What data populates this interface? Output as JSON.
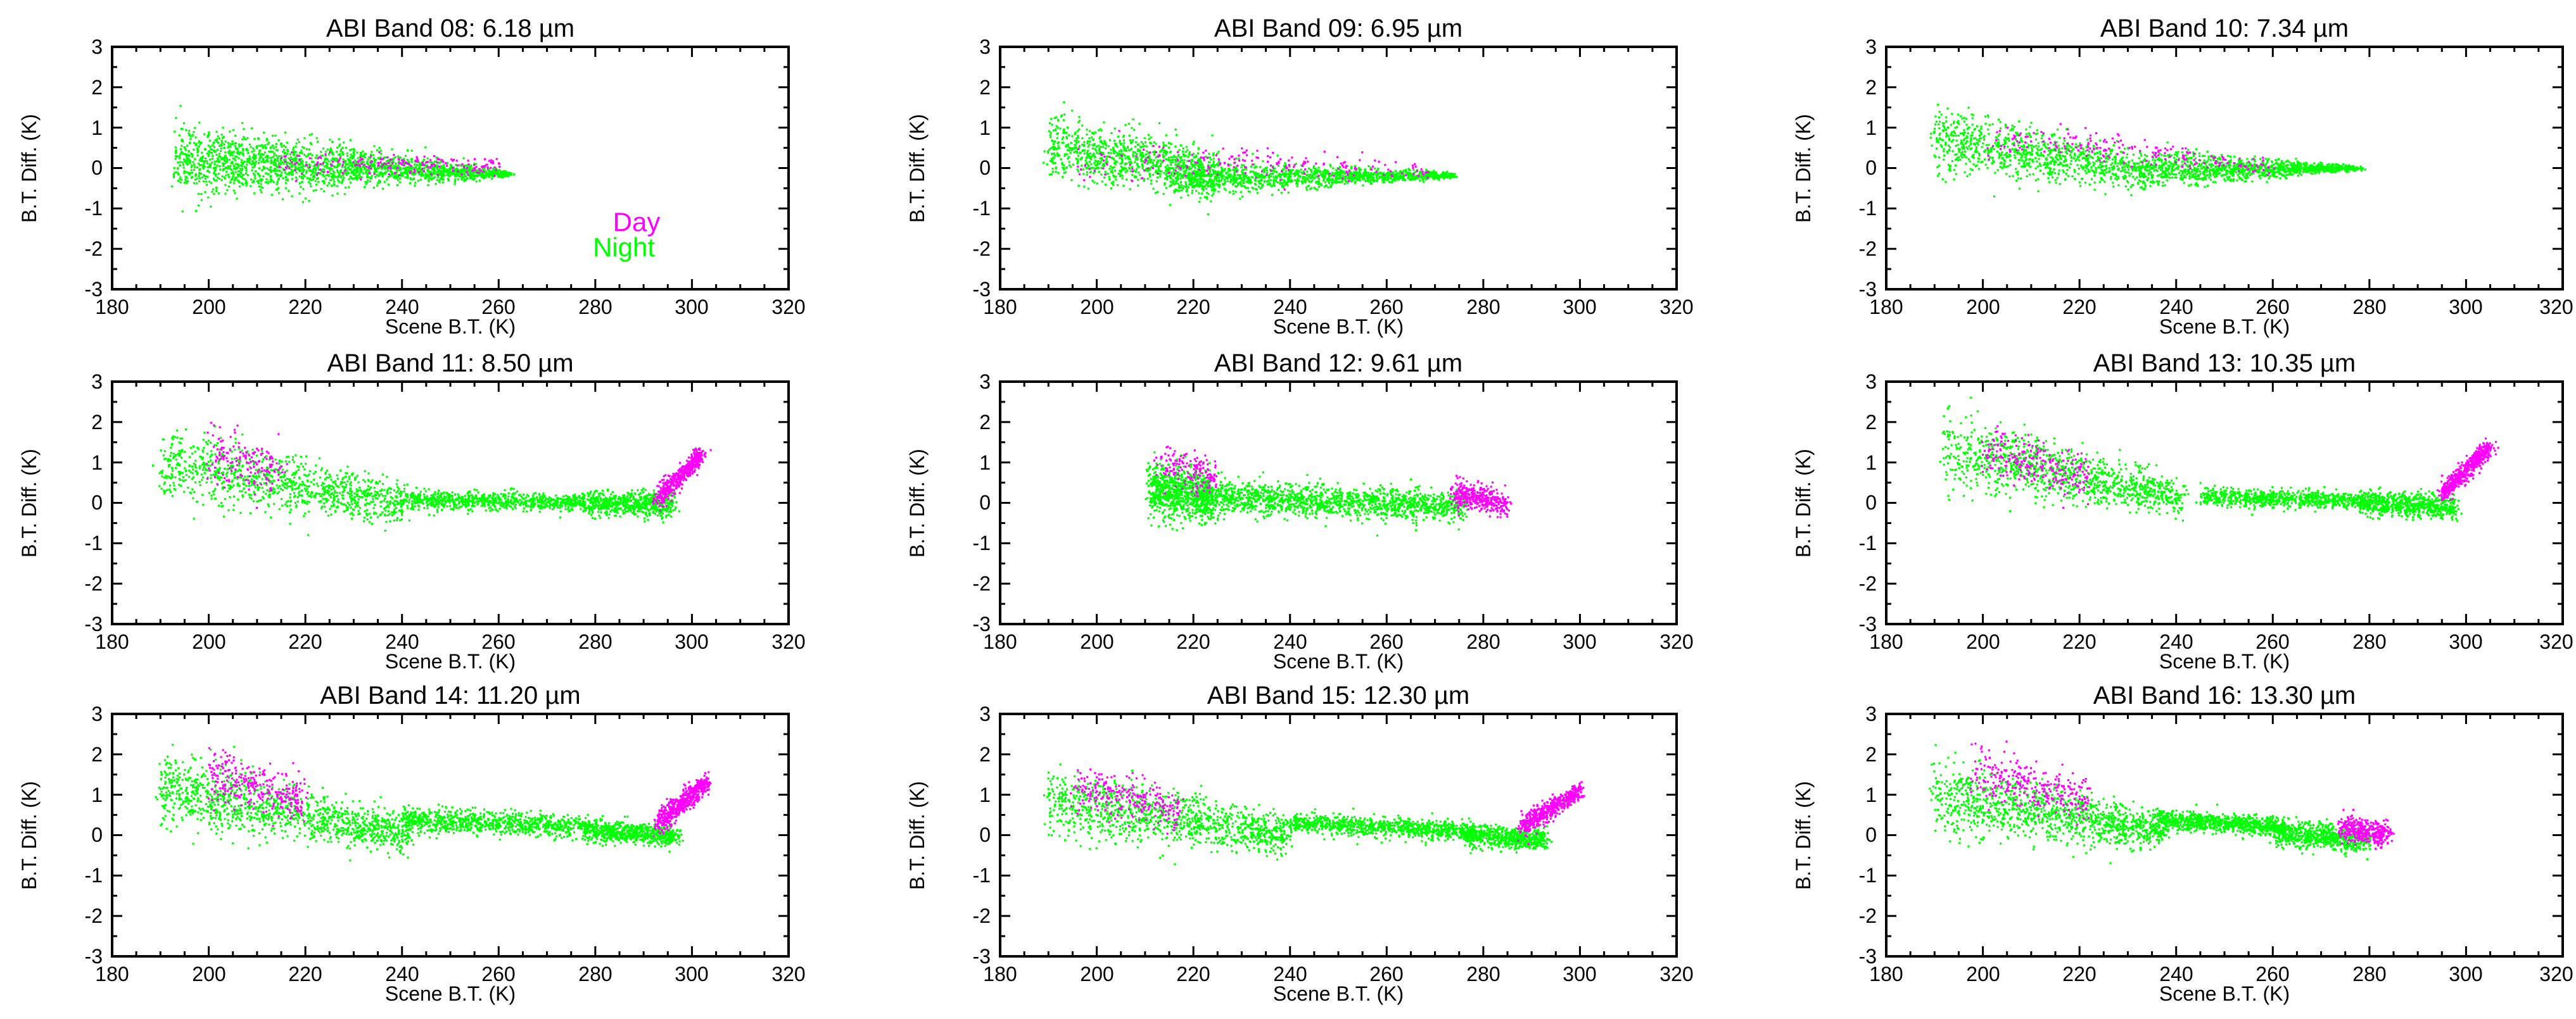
{
  "colors": {
    "day": "#ff00ff",
    "night": "#00ff00",
    "axis": "#000000",
    "background": "#ffffff"
  },
  "legend": {
    "day_label": "Day",
    "night_label": "Night",
    "placement": "inside lower-right of first panel"
  },
  "chart_data": [
    {
      "type": "scatter",
      "title": "ABI Band 08:  6.18 µm",
      "xlabel": "Scene B.T. (K)",
      "ylabel": "B.T. Diff. (K)",
      "xlim": [
        180,
        320
      ],
      "ylim": [
        -3,
        3
      ],
      "xticks": [
        180,
        200,
        220,
        240,
        260,
        280,
        300,
        320
      ],
      "yticks": [
        3,
        2,
        1,
        0,
        -1,
        -2,
        -3
      ],
      "series": [
        {
          "name": "Night",
          "color": "#00ff00",
          "clusters": [
            {
              "x": [
                193,
                262
              ],
              "y_center": [
                0.2,
                -0.15
              ],
              "spread": [
                0.9,
                0.08
              ],
              "density": 520
            }
          ]
        },
        {
          "name": "Day",
          "color": "#ff00ff",
          "clusters": [
            {
              "x": [
                215,
                260
              ],
              "y_center": [
                0.1,
                0.05
              ],
              "spread": [
                0.3,
                0.2
              ],
              "density": 50
            }
          ]
        }
      ]
    },
    {
      "type": "scatter",
      "title": "ABI Band 09:  6.95 µm",
      "xlabel": "Scene B.T. (K)",
      "ylabel": "B.T. Diff. (K)",
      "xlim": [
        180,
        320
      ],
      "ylim": [
        -3,
        3
      ],
      "xticks": [
        180,
        200,
        220,
        240,
        260,
        280,
        300,
        320
      ],
      "yticks": [
        3,
        2,
        1,
        0,
        -1,
        -2,
        -3
      ],
      "series": [
        {
          "name": "Night",
          "color": "#00ff00",
          "clusters": [
            {
              "x": [
                190,
                225
              ],
              "y_center": [
                0.5,
                -0.1
              ],
              "spread": [
                0.8,
                0.55
              ],
              "density": 240
            },
            {
              "x": [
                215,
                274
              ],
              "y_center": [
                -0.25,
                -0.18
              ],
              "spread": [
                0.5,
                0.06
              ],
              "density": 320
            }
          ]
        },
        {
          "name": "Day",
          "color": "#ff00ff",
          "clusters": [
            {
              "x": [
                195,
                270
              ],
              "y_center": [
                0.3,
                -0.1
              ],
              "spread": [
                0.5,
                0.2
              ],
              "density": 50
            }
          ]
        }
      ]
    },
    {
      "type": "scatter",
      "title": "ABI Band 10:  7.34 µm",
      "xlabel": "Scene B.T. (K)",
      "ylabel": "B.T. Diff. (K)",
      "xlim": [
        180,
        320
      ],
      "ylim": [
        -3,
        3
      ],
      "xticks": [
        180,
        200,
        220,
        240,
        260,
        280,
        300,
        320
      ],
      "yticks": [
        3,
        2,
        1,
        0,
        -1,
        -2,
        -3
      ],
      "series": [
        {
          "name": "Night",
          "color": "#00ff00",
          "clusters": [
            {
              "x": [
                190,
                235
              ],
              "y_center": [
                0.7,
                -0.1
              ],
              "spread": [
                0.8,
                0.4
              ],
              "density": 260
            },
            {
              "x": [
                235,
                278
              ],
              "y_center": [
                -0.05,
                0.0
              ],
              "spread": [
                0.45,
                0.05
              ],
              "density": 280
            }
          ]
        },
        {
          "name": "Day",
          "color": "#ff00ff",
          "clusters": [
            {
              "x": [
                200,
                260
              ],
              "y_center": [
                0.8,
                0.0
              ],
              "spread": [
                0.5,
                0.2
              ],
              "density": 50
            }
          ]
        }
      ]
    },
    {
      "type": "scatter",
      "title": "ABI Band 11:  8.50 µm",
      "xlabel": "Scene B.T. (K)",
      "ylabel": "B.T. Diff. (K)",
      "xlim": [
        180,
        320
      ],
      "ylim": [
        -3,
        3
      ],
      "xticks": [
        180,
        200,
        220,
        240,
        260,
        280,
        300,
        320
      ],
      "yticks": [
        3,
        2,
        1,
        0,
        -1,
        -2,
        -3
      ],
      "series": [
        {
          "name": "Night",
          "color": "#00ff00",
          "clusters": [
            {
              "x": [
                190,
                240
              ],
              "y_center": [
                1.0,
                0.0
              ],
              "spread": [
                0.9,
                0.5
              ],
              "density": 260
            },
            {
              "x": [
                240,
                278
              ],
              "y_center": [
                0.1,
                0.0
              ],
              "spread": [
                0.25,
                0.2
              ],
              "density": 200
            },
            {
              "x": [
                278,
                296
              ],
              "y_center": [
                0.0,
                -0.05
              ],
              "spread": [
                0.3,
                0.3
              ],
              "density": 160
            }
          ]
        },
        {
          "name": "Day",
          "color": "#ff00ff",
          "clusters": [
            {
              "x": [
                200,
                215
              ],
              "y_center": [
                1.2,
                0.8
              ],
              "spread": [
                0.7,
                0.5
              ],
              "density": 40
            },
            {
              "x": [
                293,
                302
              ],
              "y_center": [
                0.1,
                1.2
              ],
              "spread": [
                0.25,
                0.2
              ],
              "density": 120
            }
          ]
        }
      ]
    },
    {
      "type": "scatter",
      "title": "ABI Band 12:  9.61 µm",
      "xlabel": "Scene B.T. (K)",
      "ylabel": "B.T. Diff. (K)",
      "xlim": [
        180,
        320
      ],
      "ylim": [
        -3,
        3
      ],
      "xticks": [
        180,
        200,
        220,
        240,
        260,
        280,
        300,
        320
      ],
      "yticks": [
        3,
        2,
        1,
        0,
        -1,
        -2,
        -3
      ],
      "series": [
        {
          "name": "Night",
          "color": "#00ff00",
          "clusters": [
            {
              "x": [
                211,
                224
              ],
              "y_center": [
                0.3,
                0.2
              ],
              "spread": [
                0.7,
                0.55
              ],
              "density": 220
            },
            {
              "x": [
                222,
                276
              ],
              "y_center": [
                0.15,
                -0.1
              ],
              "spread": [
                0.45,
                0.35
              ],
              "density": 360
            }
          ]
        },
        {
          "name": "Day",
          "color": "#ff00ff",
          "clusters": [
            {
              "x": [
                213,
                225
              ],
              "y_center": [
                1.0,
                0.6
              ],
              "spread": [
                0.5,
                0.4
              ],
              "density": 40
            },
            {
              "x": [
                274,
                285
              ],
              "y_center": [
                0.2,
                0.0
              ],
              "spread": [
                0.35,
                0.3
              ],
              "density": 90
            }
          ]
        }
      ]
    },
    {
      "type": "scatter",
      "title": "ABI Band 13: 10.35 µm",
      "xlabel": "Scene B.T. (K)",
      "ylabel": "B.T. Diff. (K)",
      "xlim": [
        180,
        320
      ],
      "ylim": [
        -3,
        3
      ],
      "xticks": [
        180,
        200,
        220,
        240,
        260,
        280,
        300,
        320
      ],
      "yticks": [
        3,
        2,
        1,
        0,
        -1,
        -2,
        -3
      ],
      "series": [
        {
          "name": "Night",
          "color": "#00ff00",
          "clusters": [
            {
              "x": [
                192,
                242
              ],
              "y_center": [
                1.3,
                0.1
              ],
              "spread": [
                0.95,
                0.4
              ],
              "density": 280
            },
            {
              "x": [
                245,
                280
              ],
              "y_center": [
                0.15,
                0.05
              ],
              "spread": [
                0.22,
                0.2
              ],
              "density": 200
            },
            {
              "x": [
                278,
                298
              ],
              "y_center": [
                0.0,
                -0.1
              ],
              "spread": [
                0.3,
                0.3
              ],
              "density": 160
            }
          ]
        },
        {
          "name": "Day",
          "color": "#ff00ff",
          "clusters": [
            {
              "x": [
                200,
                222
              ],
              "y_center": [
                1.3,
                0.6
              ],
              "spread": [
                0.7,
                0.5
              ],
              "density": 60
            },
            {
              "x": [
                295,
                305
              ],
              "y_center": [
                0.2,
                1.4
              ],
              "spread": [
                0.25,
                0.2
              ],
              "density": 130
            }
          ]
        }
      ]
    },
    {
      "type": "scatter",
      "title": "ABI Band 14: 11.20 µm",
      "xlabel": "Scene B.T. (K)",
      "ylabel": "B.T. Diff. (K)",
      "xlim": [
        180,
        320
      ],
      "ylim": [
        -3,
        3
      ],
      "xticks": [
        180,
        200,
        220,
        240,
        260,
        280,
        300,
        320
      ],
      "yticks": [
        3,
        2,
        1,
        0,
        -1,
        -2,
        -3
      ],
      "series": [
        {
          "name": "Night",
          "color": "#00ff00",
          "clusters": [
            {
              "x": [
                190,
                242
              ],
              "y_center": [
                1.1,
                0.0
              ],
              "spread": [
                0.95,
                0.45
              ],
              "density": 300
            },
            {
              "x": [
                240,
                280
              ],
              "y_center": [
                0.4,
                0.2
              ],
              "spread": [
                0.3,
                0.25
              ],
              "density": 220
            },
            {
              "x": [
                278,
                297
              ],
              "y_center": [
                0.1,
                0.0
              ],
              "spread": [
                0.28,
                0.25
              ],
              "density": 160
            }
          ]
        },
        {
          "name": "Day",
          "color": "#ff00ff",
          "clusters": [
            {
              "x": [
                200,
                220
              ],
              "y_center": [
                1.6,
                0.8
              ],
              "spread": [
                0.7,
                0.5
              ],
              "density": 70
            },
            {
              "x": [
                293,
                303
              ],
              "y_center": [
                0.3,
                1.3
              ],
              "spread": [
                0.3,
                0.25
              ],
              "density": 130
            }
          ]
        }
      ]
    },
    {
      "type": "scatter",
      "title": "ABI Band 15: 12.30 µm",
      "xlabel": "Scene B.T. (K)",
      "ylabel": "B.T. Diff. (K)",
      "xlim": [
        180,
        320
      ],
      "ylim": [
        -3,
        3
      ],
      "xticks": [
        180,
        200,
        220,
        240,
        260,
        280,
        300,
        320
      ],
      "yticks": [
        3,
        2,
        1,
        0,
        -1,
        -2,
        -3
      ],
      "series": [
        {
          "name": "Night",
          "color": "#00ff00",
          "clusters": [
            {
              "x": [
                190,
                240
              ],
              "y_center": [
                0.8,
                0.0
              ],
              "spread": [
                0.85,
                0.45
              ],
              "density": 280
            },
            {
              "x": [
                240,
                278
              ],
              "y_center": [
                0.3,
                0.1
              ],
              "spread": [
                0.25,
                0.22
              ],
              "density": 220
            },
            {
              "x": [
                276,
                293
              ],
              "y_center": [
                0.0,
                -0.1
              ],
              "spread": [
                0.3,
                0.25
              ],
              "density": 160
            }
          ]
        },
        {
          "name": "Day",
          "color": "#ff00ff",
          "clusters": [
            {
              "x": [
                195,
                218
              ],
              "y_center": [
                1.2,
                0.6
              ],
              "spread": [
                0.6,
                0.5
              ],
              "density": 60
            },
            {
              "x": [
                288,
                300
              ],
              "y_center": [
                0.2,
                1.1
              ],
              "spread": [
                0.3,
                0.22
              ],
              "density": 120
            }
          ]
        }
      ]
    },
    {
      "type": "scatter",
      "title": "ABI Band 16: 13.30 µm",
      "xlabel": "Scene B.T. (K)",
      "ylabel": "B.T. Diff. (K)",
      "xlim": [
        180,
        320
      ],
      "ylim": [
        -3,
        3
      ],
      "xticks": [
        180,
        200,
        220,
        240,
        260,
        280,
        300,
        320
      ],
      "yticks": [
        3,
        2,
        1,
        0,
        -1,
        -2,
        -3
      ],
      "series": [
        {
          "name": "Night",
          "color": "#00ff00",
          "clusters": [
            {
              "x": [
                190,
                238
              ],
              "y_center": [
                1.0,
                0.1
              ],
              "spread": [
                0.9,
                0.45
              ],
              "density": 300
            },
            {
              "x": [
                236,
                262
              ],
              "y_center": [
                0.4,
                0.2
              ],
              "spread": [
                0.25,
                0.22
              ],
              "density": 200
            },
            {
              "x": [
                260,
                280
              ],
              "y_center": [
                0.1,
                -0.15
              ],
              "spread": [
                0.32,
                0.3
              ],
              "density": 180
            }
          ]
        },
        {
          "name": "Day",
          "color": "#ff00ff",
          "clusters": [
            {
              "x": [
                198,
                222
              ],
              "y_center": [
                1.6,
                0.8
              ],
              "spread": [
                0.7,
                0.5
              ],
              "density": 70
            },
            {
              "x": [
                274,
                284
              ],
              "y_center": [
                0.2,
                0.0
              ],
              "spread": [
                0.35,
                0.3
              ],
              "density": 90
            }
          ]
        }
      ]
    }
  ]
}
